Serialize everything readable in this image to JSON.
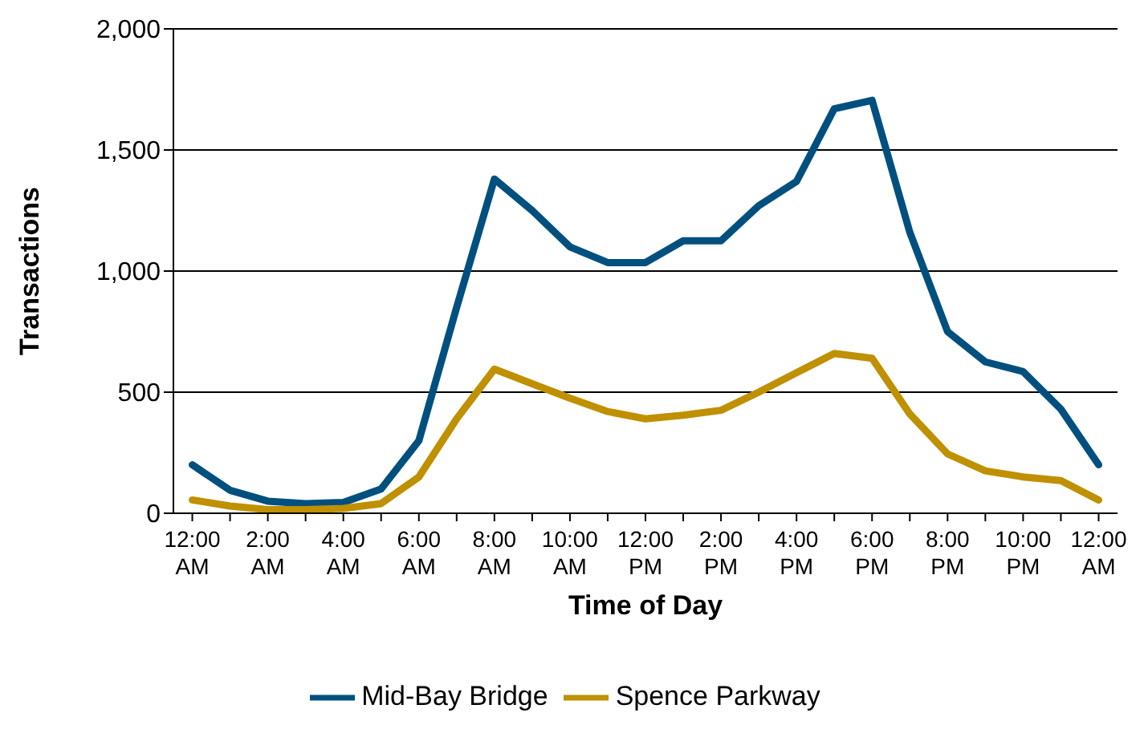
{
  "chart_data": {
    "type": "line",
    "xlabel": "Time of Day",
    "ylabel": "Transactions",
    "categories": [
      "12:00 AM",
      null,
      "2:00 AM",
      null,
      "4:00 AM",
      null,
      "6:00 AM",
      null,
      "8:00 AM",
      null,
      "10:00 AM",
      null,
      "12:00 PM",
      null,
      "2:00 PM",
      null,
      "4:00 PM",
      null,
      "6:00 PM",
      null,
      "8:00 PM",
      null,
      "10:00 PM",
      null,
      "12:00 AM"
    ],
    "series": [
      {
        "name": "Mid-Bay Bridge",
        "color": "#00507f",
        "values": [
          200,
          95,
          50,
          40,
          45,
          100,
          300,
          850,
          1380,
          1250,
          1100,
          1035,
          1035,
          1125,
          1125,
          1270,
          1370,
          1670,
          1705,
          1160,
          750,
          625,
          585,
          430,
          200
        ]
      },
      {
        "name": "Spence Parkway",
        "color": "#bf9000",
        "values": [
          55,
          30,
          15,
          15,
          20,
          40,
          150,
          390,
          595,
          535,
          475,
          420,
          390,
          405,
          425,
          500,
          580,
          660,
          640,
          410,
          245,
          175,
          150,
          135,
          55
        ]
      }
    ],
    "ylim": [
      0,
      2000
    ],
    "yticks": [
      {
        "value": 0,
        "label": "0"
      },
      {
        "value": 500,
        "label": "500"
      },
      {
        "value": 1000,
        "label": "1,000"
      },
      {
        "value": 1500,
        "label": "1,500"
      },
      {
        "value": 2000,
        "label": "2,000"
      }
    ],
    "grid": "y",
    "legend": "bottom",
    "marker": "none",
    "line_style": "solid"
  }
}
